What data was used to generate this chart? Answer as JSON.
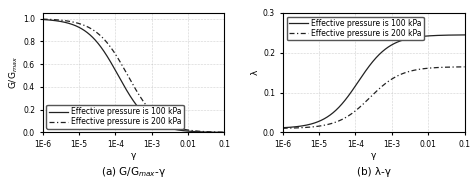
{
  "subplot1": {
    "caption": "(a) G/G$_{max}$-γ",
    "ylabel": "G/G$_{max}$",
    "xlabel": "γ",
    "ylim": [
      0.0,
      1.05
    ],
    "xlim": [
      1e-06,
      0.1
    ],
    "yticks": [
      0.0,
      0.2,
      0.4,
      0.6,
      0.8,
      1.0
    ],
    "curve1_label": "Effective pressure is 100 kPa",
    "curve2_label": "Effective pressure is 200 kPa",
    "gamma_ref1": 0.00012,
    "gamma_ref2": 0.00022
  },
  "subplot2": {
    "caption": "(b) λ-γ",
    "ylabel": "λ",
    "xlabel": "γ",
    "ylim": [
      0.0,
      0.3
    ],
    "xlim": [
      1e-06,
      0.1
    ],
    "yticks": [
      0.0,
      0.1,
      0.2,
      0.3
    ],
    "curve1_label": "Effective pressure is 100 kPa",
    "curve2_label": "Effective pressure is 200 kPa",
    "lambda_max1": 0.245,
    "lambda_max2": 0.165,
    "lambda_min1": 0.01,
    "lambda_min2": 0.01,
    "gamma_ref1": 0.00012,
    "gamma_ref2": 0.00025
  },
  "line_color": "#222222",
  "bg_color": "#ffffff",
  "grid_color": "#aaaaaa",
  "legend_fontsize": 5.5,
  "axis_fontsize": 6.5,
  "caption_fontsize": 7.5,
  "tick_fontsize": 5.5
}
